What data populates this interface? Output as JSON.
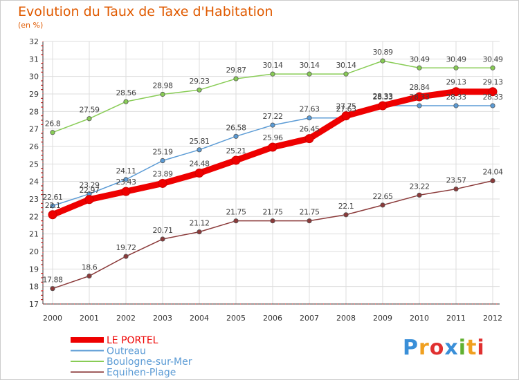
{
  "header": {
    "title": "Evolution du Taux de Taxe d'Habitation",
    "unit": "(en %)"
  },
  "logo": {
    "text": "Proxiti",
    "letters": [
      "P",
      "r",
      "o",
      "x",
      "i",
      "t",
      "i"
    ],
    "colors": [
      "#3a8fd8",
      "#f0a020",
      "#e03030",
      "#3a8fd8",
      "#60b030",
      "#f0a020",
      "#e03030"
    ]
  },
  "chart_data": {
    "type": "line",
    "title": "Evolution du Taux de Taxe d'Habitation",
    "ylabel": "(en %)",
    "xlabel": "",
    "x": [
      "2000",
      "2001",
      "2002",
      "2003",
      "2004",
      "2005",
      "2006",
      "2007",
      "2008",
      "2009",
      "2010",
      "2011",
      "2012"
    ],
    "ylim": [
      17,
      32
    ],
    "yticks": [
      "17",
      "18",
      "19",
      "20",
      "21",
      "22",
      "23",
      "24",
      "25",
      "26",
      "27",
      "28",
      "29",
      "30",
      "31",
      "32"
    ],
    "grid": true,
    "legend_position": "bottom-left",
    "series": [
      {
        "name": "LE PORTEL",
        "color": "#ee0000",
        "values": [
          22.1,
          22.97,
          23.43,
          23.89,
          24.48,
          25.21,
          25.96,
          26.45,
          27.75,
          28.33,
          28.84,
          29.13,
          29.13
        ],
        "labels": [
          "22.1",
          "22.97",
          "23.43",
          "23.89",
          "24.48",
          "25.21",
          "25.96",
          "26.45",
          "27.75",
          "28.33",
          "28.84",
          "29.13",
          "29.13"
        ]
      },
      {
        "name": "Outreau",
        "color": "#5b9bd5",
        "values": [
          22.61,
          23.29,
          24.11,
          25.19,
          25.81,
          26.58,
          27.22,
          27.63,
          27.63,
          28.33,
          28.33,
          28.33,
          28.33
        ],
        "labels": [
          "22.61",
          "23.29",
          "24.11",
          "25.19",
          "25.81",
          "26.58",
          "27.22",
          "27.63",
          "27.63",
          "28.33",
          "28.33",
          "28.33",
          "28.33"
        ]
      },
      {
        "name": "Boulogne-sur-Mer",
        "color": "#88cc55",
        "values": [
          26.8,
          27.59,
          28.56,
          28.98,
          29.23,
          29.87,
          30.14,
          30.14,
          30.14,
          30.89,
          30.49,
          30.49,
          30.49
        ],
        "labels": [
          "26.8",
          "27.59",
          "28.56",
          "28.98",
          "29.23",
          "29.87",
          "30.14",
          "30.14",
          "30.14",
          "30.89",
          "30.49",
          "30.49",
          "30.49"
        ]
      },
      {
        "name": "Equihen-Plage",
        "color": "#8b3a3a",
        "values": [
          17.88,
          18.6,
          19.72,
          20.71,
          21.12,
          21.75,
          21.75,
          21.75,
          22.1,
          22.65,
          23.22,
          23.57,
          24.04
        ],
        "labels": [
          "17.88",
          "18.6",
          "19.72",
          "20.71",
          "21.12",
          "21.75",
          "21.75",
          "21.75",
          "22.1",
          "22.65",
          "23.22",
          "23.57",
          "24.04"
        ]
      }
    ]
  }
}
